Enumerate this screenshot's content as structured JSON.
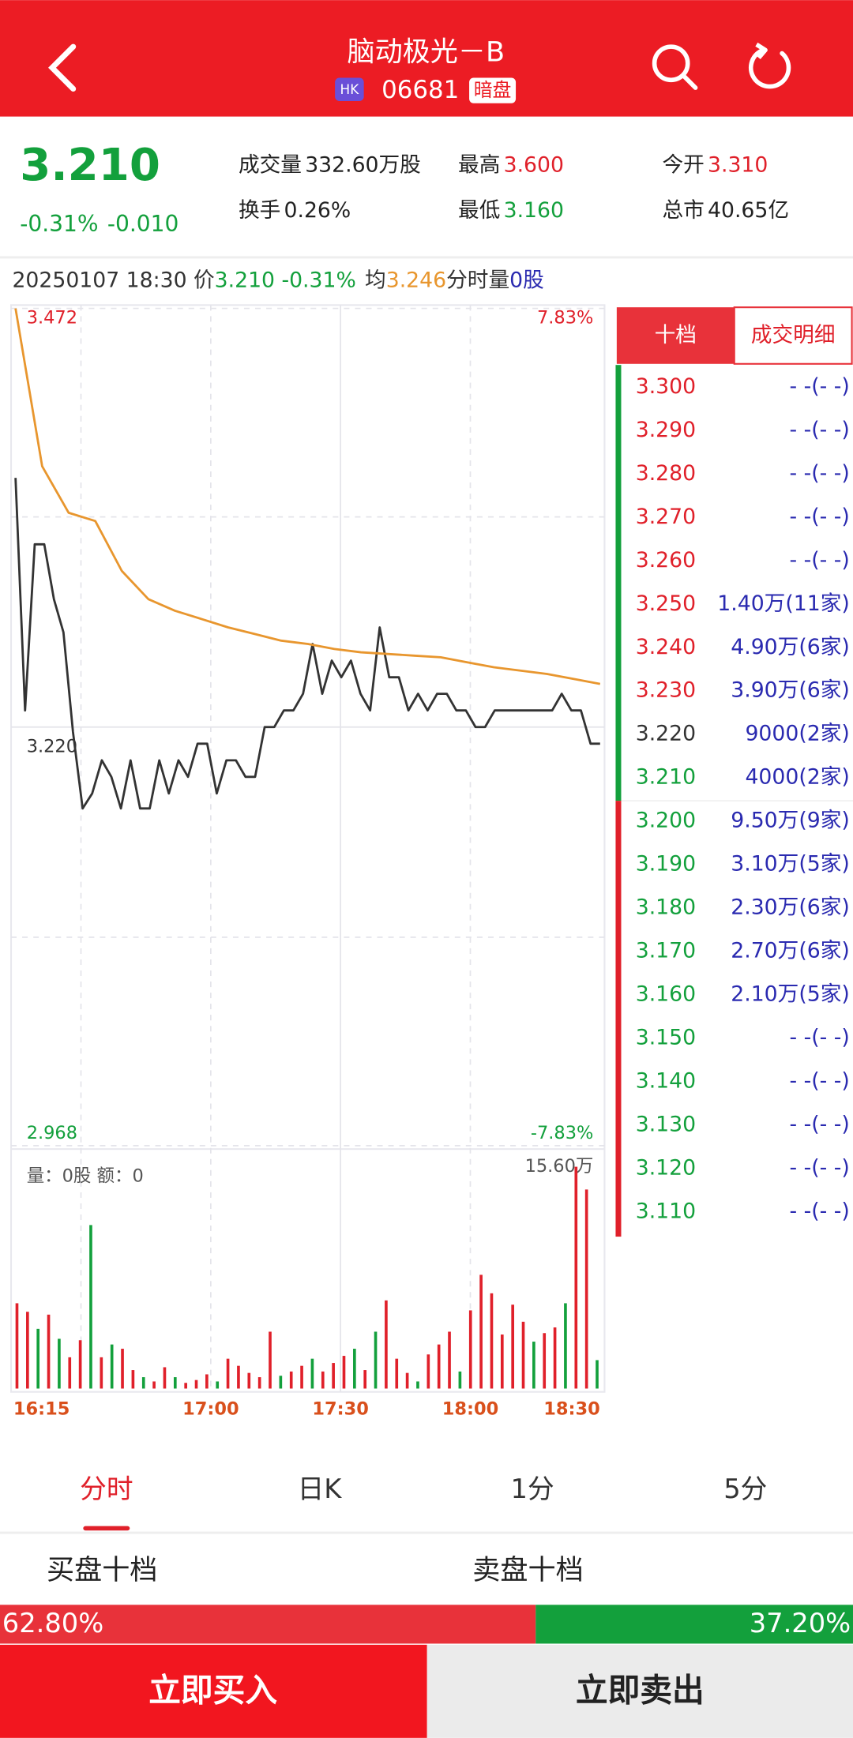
{
  "header": {
    "title": "脑动极光－B",
    "market": "HK",
    "code": "06681",
    "tag": "暗盘"
  },
  "quote": {
    "price": "3.210",
    "change_pct": "-0.31%",
    "change": "-0.010",
    "stats": [
      {
        "label": "成交量",
        "value": "332.60万股",
        "color": "#222222"
      },
      {
        "label": "最高",
        "value": "3.600",
        "color": "#e0202a"
      },
      {
        "label": "今开",
        "value": "3.310",
        "color": "#e0202a"
      },
      {
        "label": "换手",
        "value": "0.26%",
        "color": "#222222"
      },
      {
        "label": "最低",
        "value": "3.160",
        "color": "#13a03c"
      },
      {
        "label": "总市",
        "value": "40.65亿",
        "color": "#222222"
      }
    ]
  },
  "info": {
    "datetime": "20250107 18:30",
    "price_label": "价",
    "price": "3.210",
    "change_pct": "-0.31%",
    "avg_label": "均",
    "avg": "3.246",
    "vol_label": "分时量",
    "vol": "0股"
  },
  "chart_data": {
    "type": "line",
    "series": [
      {
        "name": "价",
        "color": "#333333",
        "values": [
          3.37,
          3.23,
          3.33,
          3.33,
          3.297,
          3.277,
          3.217,
          3.171,
          3.18,
          3.2,
          3.19,
          3.171,
          3.2,
          3.171,
          3.171,
          3.2,
          3.18,
          3.2,
          3.19,
          3.21,
          3.21,
          3.18,
          3.2,
          3.2,
          3.19,
          3.19,
          3.22,
          3.22,
          3.23,
          3.23,
          3.24,
          3.27,
          3.24,
          3.26,
          3.25,
          3.26,
          3.24,
          3.23,
          3.28,
          3.25,
          3.25,
          3.23,
          3.24,
          3.23,
          3.24,
          3.24,
          3.23,
          3.23,
          3.22,
          3.22,
          3.23,
          3.23,
          3.23,
          3.23,
          3.23,
          3.23,
          3.23,
          3.24,
          3.23,
          3.23,
          3.21,
          3.21
        ]
      },
      {
        "name": "均",
        "color": "#e8962e",
        "values": [
          3.472,
          3.377,
          3.349,
          3.344,
          3.314,
          3.297,
          3.29,
          3.285,
          3.28,
          3.276,
          3.272,
          3.27,
          3.267,
          3.265,
          3.264,
          3.263,
          3.262,
          3.259,
          3.256,
          3.254,
          3.252,
          3.249,
          3.246
        ]
      }
    ],
    "ylim": [
      2.968,
      3.472
    ],
    "yticks": [
      {
        "value": 3.472,
        "label": "3.472"
      },
      {
        "value": 3.22,
        "label": "3.220"
      },
      {
        "value": 2.968,
        "label": "2.968"
      }
    ],
    "pct_labels": [
      "7.83%",
      "-7.83%"
    ],
    "x_labels": [
      "16:15",
      "17:00",
      "17:30",
      "18:00",
      "18:30"
    ],
    "volume": {
      "caption": "量：0股 额：0",
      "ylim": [
        0,
        {
          "value": 15.6,
          "label": "15.60万"
        }
      ],
      "values": [
        6,
        5.4,
        4.2,
        5.2,
        3.5,
        2.2,
        3.4,
        11.5,
        2.2,
        3.1,
        2.8,
        1.3,
        0.8,
        0.5,
        1.5,
        0.8,
        0.4,
        0.6,
        1,
        0.5,
        2.1,
        1.6,
        1.1,
        0.8,
        4,
        0.9,
        1.2,
        1.6,
        2.1,
        1.2,
        1.8,
        2.3,
        2.8,
        1.3,
        4,
        6.2,
        2.1,
        1.1,
        0.5,
        2.4,
        3.1,
        4,
        1.2,
        5.5,
        8,
        6.7,
        3.8,
        5.9,
        4.7,
        3.3,
        3.9,
        4.3,
        6,
        15.6,
        14,
        2
      ],
      "colors": [
        "#e0202a",
        "#e0202a",
        "#13a03c",
        "#e0202a",
        "#13a03c",
        "#e0202a",
        "#e0202a",
        "#13a03c",
        "#e0202a",
        "#13a03c",
        "#e0202a",
        "#e0202a",
        "#13a03c",
        "#e0202a",
        "#e0202a",
        "#13a03c",
        "#e0202a",
        "#e0202a",
        "#e0202a",
        "#13a03c",
        "#e0202a",
        "#e0202a",
        "#e0202a",
        "#e0202a",
        "#e0202a",
        "#13a03c",
        "#e0202a",
        "#e0202a",
        "#13a03c",
        "#e0202a",
        "#e0202a",
        "#e0202a",
        "#13a03c",
        "#e0202a",
        "#13a03c",
        "#e0202a",
        "#e0202a",
        "#e0202a",
        "#13a03c",
        "#e0202a",
        "#e0202a",
        "#e0202a",
        "#13a03c",
        "#e0202a",
        "#e0202a",
        "#e0202a",
        "#e0202a",
        "#e0202a",
        "#e0202a",
        "#13a03c",
        "#e0202a",
        "#e0202a",
        "#13a03c",
        "#e0202a",
        "#e0202a",
        "#13a03c"
      ]
    }
  },
  "order_book": {
    "tabs": [
      "十档",
      "成交明细"
    ],
    "rows": [
      {
        "price": "3.300",
        "volume": "- -(- -)",
        "color": "#e0202a"
      },
      {
        "price": "3.290",
        "volume": "- -(- -)",
        "color": "#e0202a"
      },
      {
        "price": "3.280",
        "volume": "- -(- -)",
        "color": "#e0202a"
      },
      {
        "price": "3.270",
        "volume": "- -(- -)",
        "color": "#e0202a"
      },
      {
        "price": "3.260",
        "volume": "- -(- -)",
        "color": "#e0202a"
      },
      {
        "price": "3.250",
        "volume": "1.40万(11家)",
        "color": "#e0202a"
      },
      {
        "price": "3.240",
        "volume": "4.90万(6家)",
        "color": "#e0202a"
      },
      {
        "price": "3.230",
        "volume": "3.90万(6家)",
        "color": "#e0202a"
      },
      {
        "price": "3.220",
        "volume": "9000(2家)",
        "color": "#333333"
      },
      {
        "price": "3.210",
        "volume": "4000(2家)",
        "color": "#13a03c"
      },
      {
        "price": "3.200",
        "volume": "9.50万(9家)",
        "color": "#13a03c"
      },
      {
        "price": "3.190",
        "volume": "3.10万(5家)",
        "color": "#13a03c"
      },
      {
        "price": "3.180",
        "volume": "2.30万(6家)",
        "color": "#13a03c"
      },
      {
        "price": "3.170",
        "volume": "2.70万(6家)",
        "color": "#13a03c"
      },
      {
        "price": "3.160",
        "volume": "2.10万(5家)",
        "color": "#13a03c"
      },
      {
        "price": "3.150",
        "volume": "- -(- -)",
        "color": "#13a03c"
      },
      {
        "price": "3.140",
        "volume": "- -(- -)",
        "color": "#13a03c"
      },
      {
        "price": "3.130",
        "volume": "- -(- -)",
        "color": "#13a03c"
      },
      {
        "price": "3.120",
        "volume": "- -(- -)",
        "color": "#13a03c"
      },
      {
        "price": "3.110",
        "volume": "- -(- -)",
        "color": "#13a03c"
      }
    ]
  },
  "tabs": [
    "分时",
    "日K",
    "1分",
    "5分"
  ],
  "ratio": {
    "buy_label": "买盘十档",
    "sell_label": "卖盘十档",
    "buy": {
      "value": 62.8,
      "label": "62.80%"
    },
    "sell": {
      "value": 37.2,
      "label": "37.20%"
    }
  },
  "buttons": {
    "buy": "立即买入",
    "sell": "立即卖出"
  }
}
